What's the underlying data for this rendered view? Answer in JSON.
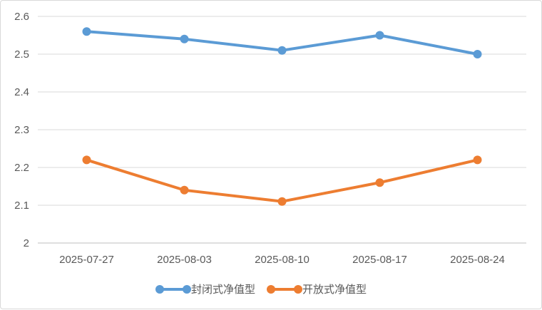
{
  "chart_data": {
    "type": "line",
    "categories": [
      "2025-07-27",
      "2025-08-03",
      "2025-08-10",
      "2025-08-17",
      "2025-08-24"
    ],
    "series": [
      {
        "name": "封闭式净值型",
        "color": "#5b9bd5",
        "values": [
          2.56,
          2.54,
          2.51,
          2.55,
          2.5
        ]
      },
      {
        "name": "开放式净值型",
        "color": "#ed7d31",
        "values": [
          2.22,
          2.14,
          2.11,
          2.16,
          2.22
        ]
      }
    ],
    "ylim": [
      2,
      2.6
    ],
    "yticks": [
      "2",
      "2.1",
      "2.2",
      "2.3",
      "2.4",
      "2.5",
      "2.6"
    ],
    "grid": true,
    "legend_position": "bottom"
  }
}
